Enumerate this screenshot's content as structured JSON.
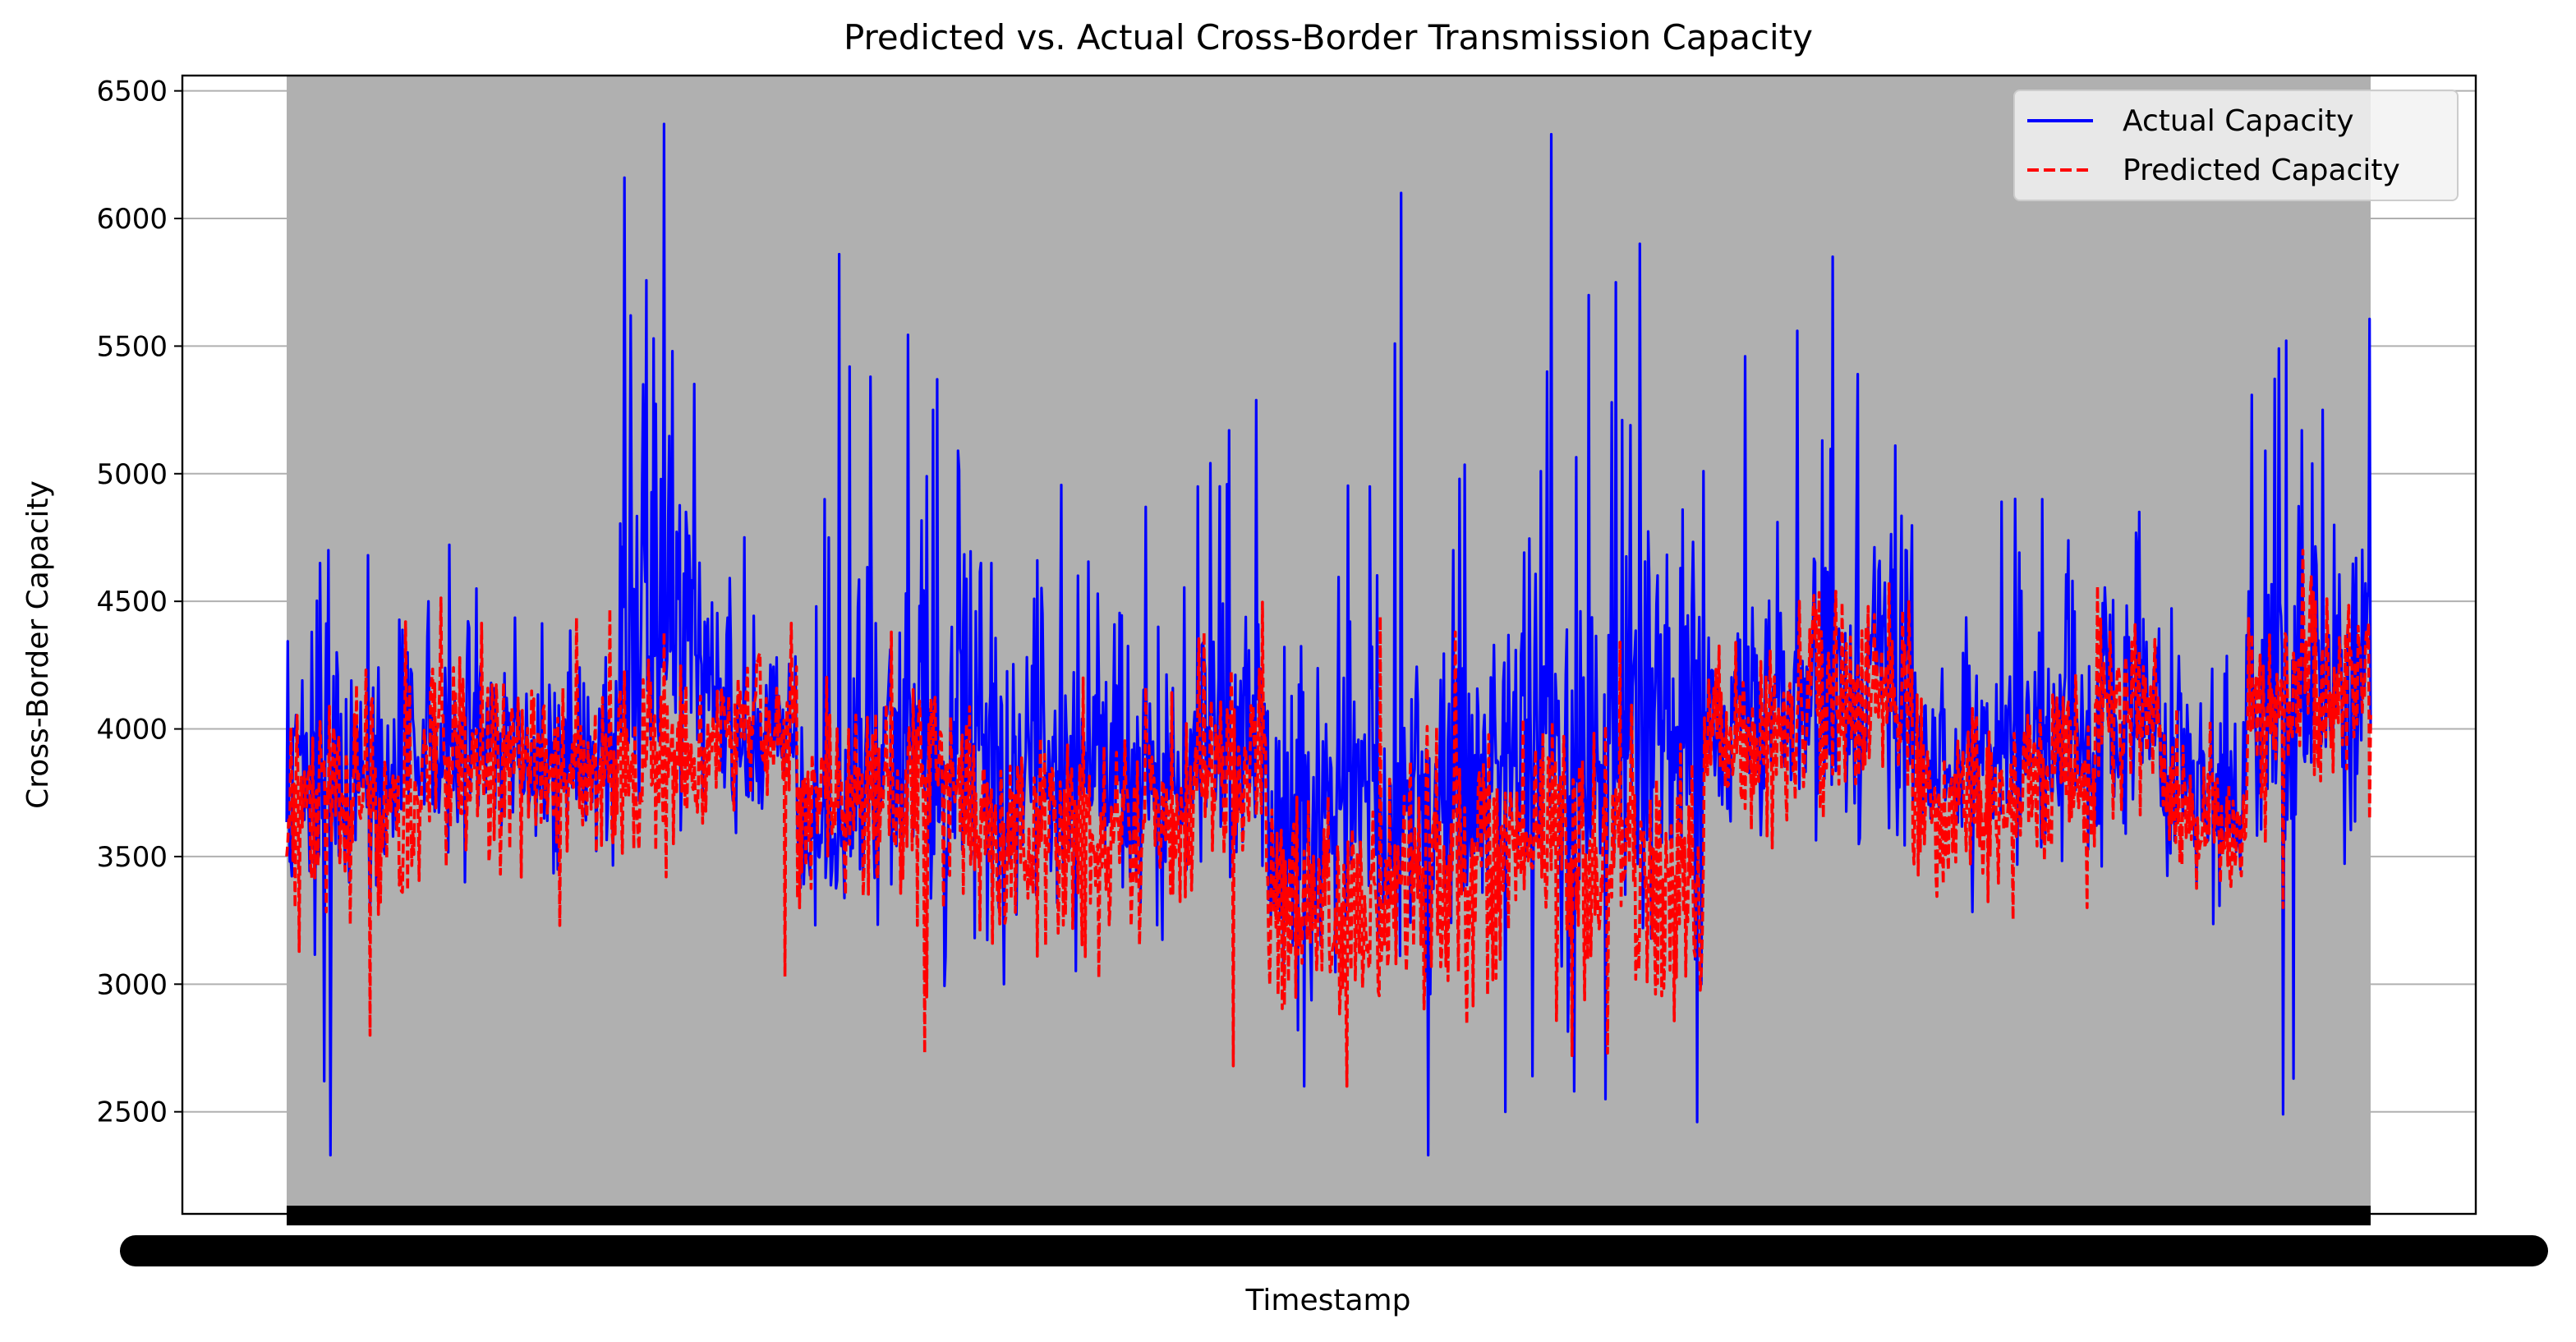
{
  "chart_data": {
    "type": "line",
    "title": "Predicted vs. Actual Cross-Border Transmission Capacity",
    "xlabel": "Timestamp",
    "ylabel": "Cross-Border Capacity",
    "ylim": [
      2100,
      6560
    ],
    "yticks": [
      2500,
      3000,
      3500,
      4000,
      4500,
      5000,
      5500,
      6000,
      6500
    ],
    "grid": "horizontal",
    "legend_position": "top-right",
    "x_tick_labels_note": "x-axis tick labels are densely overlapping and illegible",
    "n_points": 2000,
    "segments": [
      {
        "from": 0.0,
        "to": 0.06,
        "actual_mean": 3820,
        "actual_sd": 260,
        "pred_mean": 3720,
        "pred_sd": 260
      },
      {
        "from": 0.06,
        "to": 0.16,
        "actual_mean": 3930,
        "actual_sd": 190,
        "pred_mean": 3860,
        "pred_sd": 230
      },
      {
        "from": 0.16,
        "to": 0.205,
        "actual_mean": 4320,
        "actual_sd": 420,
        "pred_mean": 3900,
        "pred_sd": 220
      },
      {
        "from": 0.205,
        "to": 0.245,
        "actual_mean": 3950,
        "actual_sd": 210,
        "pred_mean": 4000,
        "pred_sd": 170
      },
      {
        "from": 0.245,
        "to": 0.27,
        "actual_mean": 3600,
        "actual_sd": 180,
        "pred_mean": 3720,
        "pred_sd": 200
      },
      {
        "from": 0.27,
        "to": 0.33,
        "actual_mean": 3880,
        "actual_sd": 400,
        "pred_mean": 3750,
        "pred_sd": 230
      },
      {
        "from": 0.33,
        "to": 0.4,
        "actual_mean": 3850,
        "actual_sd": 380,
        "pred_mean": 3580,
        "pred_sd": 240
      },
      {
        "from": 0.4,
        "to": 0.435,
        "actual_mean": 3700,
        "actual_sd": 260,
        "pred_mean": 3650,
        "pred_sd": 220
      },
      {
        "from": 0.435,
        "to": 0.47,
        "actual_mean": 3950,
        "actual_sd": 320,
        "pred_mean": 3900,
        "pred_sd": 220
      },
      {
        "from": 0.47,
        "to": 0.53,
        "actual_mean": 3650,
        "actual_sd": 330,
        "pred_mean": 3300,
        "pred_sd": 260
      },
      {
        "from": 0.53,
        "to": 0.58,
        "actual_mean": 3750,
        "actual_sd": 400,
        "pred_mean": 3450,
        "pred_sd": 300
      },
      {
        "from": 0.58,
        "to": 0.64,
        "actual_mean": 3800,
        "actual_sd": 360,
        "pred_mean": 3550,
        "pred_sd": 280
      },
      {
        "from": 0.64,
        "to": 0.68,
        "actual_mean": 3950,
        "actual_sd": 430,
        "pred_mean": 3450,
        "pred_sd": 300
      },
      {
        "from": 0.68,
        "to": 0.73,
        "actual_mean": 4050,
        "actual_sd": 250,
        "pred_mean": 3950,
        "pred_sd": 200
      },
      {
        "from": 0.73,
        "to": 0.78,
        "actual_mean": 4200,
        "actual_sd": 330,
        "pred_mean": 4150,
        "pred_sd": 230
      },
      {
        "from": 0.78,
        "to": 0.83,
        "actual_mean": 3850,
        "actual_sd": 230,
        "pred_mean": 3750,
        "pred_sd": 200
      },
      {
        "from": 0.83,
        "to": 0.87,
        "actual_mean": 3950,
        "actual_sd": 260,
        "pred_mean": 3850,
        "pred_sd": 230
      },
      {
        "from": 0.87,
        "to": 0.9,
        "actual_mean": 4050,
        "actual_sd": 260,
        "pred_mean": 4050,
        "pred_sd": 220
      },
      {
        "from": 0.9,
        "to": 0.94,
        "actual_mean": 3750,
        "actual_sd": 210,
        "pred_mean": 3650,
        "pred_sd": 200
      },
      {
        "from": 0.94,
        "to": 1.0,
        "actual_mean": 4150,
        "actual_sd": 350,
        "pred_mean": 4150,
        "pred_sd": 220
      }
    ],
    "actual_peaks": [
      {
        "x": 0.012,
        "y": 4380
      },
      {
        "x": 0.016,
        "y": 4650
      },
      {
        "x": 0.018,
        "y": 2620
      },
      {
        "x": 0.02,
        "y": 4700
      },
      {
        "x": 0.021,
        "y": 2330
      },
      {
        "x": 0.024,
        "y": 4300
      },
      {
        "x": 0.058,
        "y": 4300
      },
      {
        "x": 0.068,
        "y": 4500
      },
      {
        "x": 0.091,
        "y": 4550
      },
      {
        "x": 0.162,
        "y": 6160
      },
      {
        "x": 0.165,
        "y": 5620
      },
      {
        "x": 0.171,
        "y": 5350
      },
      {
        "x": 0.176,
        "y": 5530
      },
      {
        "x": 0.181,
        "y": 6370
      },
      {
        "x": 0.185,
        "y": 5480
      },
      {
        "x": 0.254,
        "y": 4480
      },
      {
        "x": 0.258,
        "y": 4900
      },
      {
        "x": 0.26,
        "y": 4750
      },
      {
        "x": 0.265,
        "y": 5860
      },
      {
        "x": 0.27,
        "y": 5420
      },
      {
        "x": 0.28,
        "y": 5380
      },
      {
        "x": 0.307,
        "y": 4990
      },
      {
        "x": 0.31,
        "y": 5250
      },
      {
        "x": 0.312,
        "y": 5370
      },
      {
        "x": 0.322,
        "y": 5090
      },
      {
        "x": 0.333,
        "y": 4650
      },
      {
        "x": 0.338,
        "y": 4650
      },
      {
        "x": 0.344,
        "y": 3000
      },
      {
        "x": 0.412,
        "y": 4870
      },
      {
        "x": 0.418,
        "y": 4400
      },
      {
        "x": 0.437,
        "y": 4950
      },
      {
        "x": 0.452,
        "y": 5170
      },
      {
        "x": 0.485,
        "y": 2820
      },
      {
        "x": 0.488,
        "y": 2600
      },
      {
        "x": 0.52,
        "y": 4950
      },
      {
        "x": 0.532,
        "y": 5510
      },
      {
        "x": 0.535,
        "y": 6100
      },
      {
        "x": 0.548,
        "y": 2330
      },
      {
        "x": 0.56,
        "y": 4700
      },
      {
        "x": 0.585,
        "y": 2500
      },
      {
        "x": 0.598,
        "y": 2640
      },
      {
        "x": 0.602,
        "y": 5010
      },
      {
        "x": 0.605,
        "y": 5400
      },
      {
        "x": 0.607,
        "y": 6330
      },
      {
        "x": 0.618,
        "y": 2580
      },
      {
        "x": 0.625,
        "y": 5700
      },
      {
        "x": 0.633,
        "y": 2550
      },
      {
        "x": 0.636,
        "y": 5280
      },
      {
        "x": 0.638,
        "y": 5750
      },
      {
        "x": 0.641,
        "y": 5210
      },
      {
        "x": 0.645,
        "y": 5190
      },
      {
        "x": 0.677,
        "y": 2460
      },
      {
        "x": 0.679,
        "y": 3000
      },
      {
        "x": 0.68,
        "y": 5010
      },
      {
        "x": 0.7,
        "y": 5460
      },
      {
        "x": 0.725,
        "y": 5560
      },
      {
        "x": 0.737,
        "y": 5130
      },
      {
        "x": 0.742,
        "y": 5850
      },
      {
        "x": 0.754,
        "y": 5390
      },
      {
        "x": 0.772,
        "y": 5110
      },
      {
        "x": 0.823,
        "y": 4890
      },
      {
        "x": 0.857,
        "y": 4580
      },
      {
        "x": 0.888,
        "y": 4680
      },
      {
        "x": 0.889,
        "y": 4850
      },
      {
        "x": 0.958,
        "y": 2490
      },
      {
        "x": 0.963,
        "y": 2630
      },
      {
        "x": 0.967,
        "y": 5170
      },
      {
        "x": 0.972,
        "y": 5040
      },
      {
        "x": 0.977,
        "y": 5250
      },
      {
        "x": 0.993,
        "y": 4670
      }
    ],
    "predicted_peaks": [
      {
        "x": 0.004,
        "y": 3300
      },
      {
        "x": 0.04,
        "y": 2800
      },
      {
        "x": 0.057,
        "y": 4420
      },
      {
        "x": 0.131,
        "y": 3230
      },
      {
        "x": 0.155,
        "y": 4470
      },
      {
        "x": 0.181,
        "y": 4380
      },
      {
        "x": 0.23,
        "y": 4120
      },
      {
        "x": 0.239,
        "y": 3030
      },
      {
        "x": 0.29,
        "y": 4380
      },
      {
        "x": 0.307,
        "y": 2950
      },
      {
        "x": 0.306,
        "y": 2730
      },
      {
        "x": 0.37,
        "y": 3200
      },
      {
        "x": 0.382,
        "y": 4200
      },
      {
        "x": 0.44,
        "y": 4380
      },
      {
        "x": 0.454,
        "y": 2680
      },
      {
        "x": 0.509,
        "y": 2600
      },
      {
        "x": 0.525,
        "y": 4440
      },
      {
        "x": 0.541,
        "y": 3150
      },
      {
        "x": 0.561,
        "y": 4380
      },
      {
        "x": 0.617,
        "y": 2720
      },
      {
        "x": 0.634,
        "y": 2730
      },
      {
        "x": 0.64,
        "y": 4340
      },
      {
        "x": 0.726,
        "y": 4500
      },
      {
        "x": 0.759,
        "y": 4480
      },
      {
        "x": 0.869,
        "y": 4560
      },
      {
        "x": 0.864,
        "y": 3300
      },
      {
        "x": 0.958,
        "y": 3300
      },
      {
        "x": 0.979,
        "y": 4510
      }
    ],
    "series": [
      {
        "name": "Actual Capacity",
        "color": "#0000ff",
        "style": "solid"
      },
      {
        "name": "Predicted Capacity",
        "color": "#ff0000",
        "style": "dashed"
      }
    ],
    "colors": {
      "plot_background": "#b0b0b0",
      "grid": "#b0b0b0",
      "figure_background": "#ffffff"
    }
  }
}
